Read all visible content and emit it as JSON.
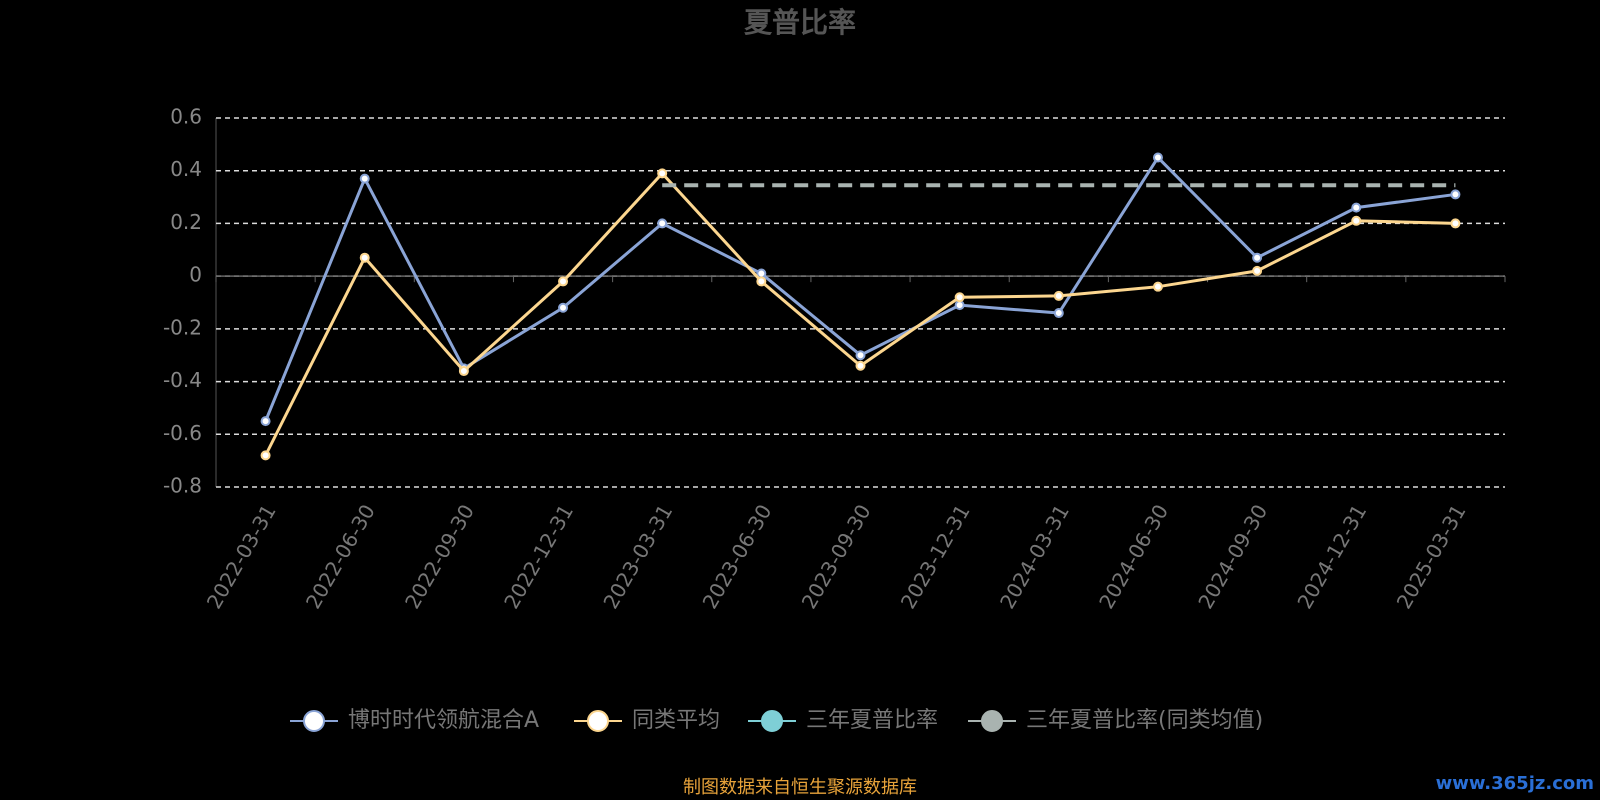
{
  "chart_data": {
    "type": "line",
    "title": "夏普比率",
    "categories": [
      "2022-03-31",
      "2022-06-30",
      "2022-09-30",
      "2022-12-31",
      "2023-03-31",
      "2023-06-30",
      "2023-09-30",
      "2023-12-31",
      "2024-03-31",
      "2024-06-30",
      "2024-09-30",
      "2024-12-31",
      "2025-03-31"
    ],
    "series": [
      {
        "name": "博时时代领航混合A",
        "color": "#8aa4d6",
        "values": [
          -0.55,
          0.37,
          -0.35,
          -0.12,
          0.2,
          0.01,
          -0.3,
          -0.11,
          -0.14,
          0.45,
          0.07,
          0.26,
          0.31
        ]
      },
      {
        "name": "同类平均",
        "color": "#fcd68f",
        "values": [
          -0.68,
          0.07,
          -0.36,
          -0.02,
          0.39,
          -0.02,
          -0.34,
          -0.08,
          -0.075,
          -0.04,
          0.02,
          0.21,
          0.2
        ]
      },
      {
        "name": "三年夏普比率",
        "color": "#7ecfd6",
        "values": [
          null,
          null,
          null,
          null,
          null,
          null,
          null,
          null,
          null,
          null,
          null,
          null,
          null
        ]
      },
      {
        "name": "三年夏普比率(同类均值)",
        "color": "#a9b3b0",
        "values": [
          null,
          null,
          null,
          null,
          0.345,
          0.345,
          0.345,
          0.345,
          0.345,
          0.345,
          0.345,
          0.345,
          0.345
        ]
      }
    ],
    "ylim": [
      -0.8,
      0.6
    ],
    "yticks": [
      -0.8,
      -0.6,
      -0.4,
      -0.2,
      0,
      0.2,
      0.4,
      0.6
    ],
    "grid": true,
    "source": "制图数据来自恒生聚源数据库",
    "watermark": "www.365jz.com"
  }
}
